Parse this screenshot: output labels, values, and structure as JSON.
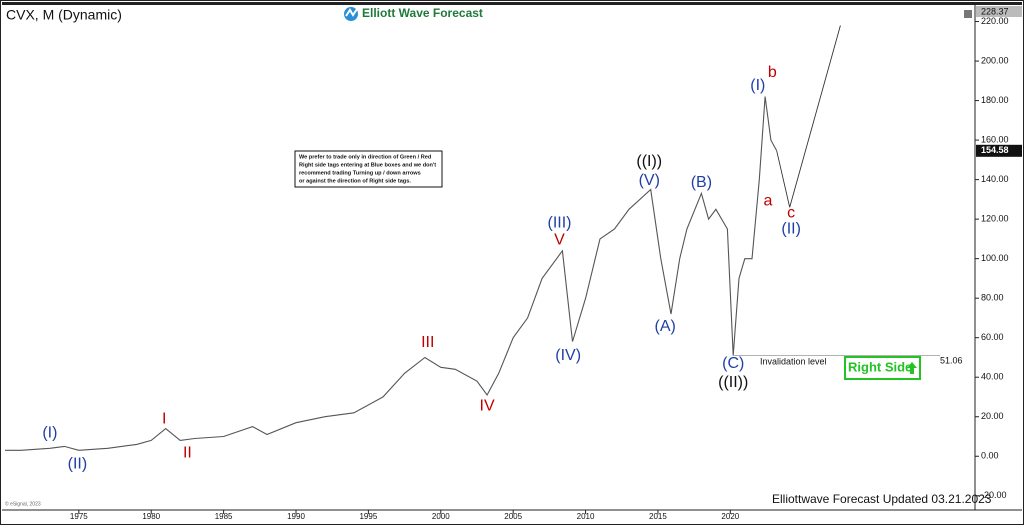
{
  "chart_data": {
    "type": "line",
    "title": "CVX, M (Dynamic)",
    "brand": "Elliott Wave Forecast",
    "x": [
      1969.9,
      1971,
      1973,
      1974,
      1975,
      1977,
      1979,
      1980,
      1981,
      1982,
      1983,
      1985,
      1987,
      1988,
      1990,
      1992,
      1994,
      1996,
      1997.5,
      1998.9,
      2000,
      2001,
      2002.5,
      2003.2,
      2004,
      2005,
      2006,
      2007,
      2008.4,
      2009.1,
      2010,
      2011,
      2012,
      2013,
      2014.5,
      2015.2,
      2015.9,
      2016.5,
      2017,
      2018,
      2018.5,
      2019,
      2019.8,
      2020.2,
      2020.6,
      2021,
      2021.5,
      2022,
      2022.4,
      2022.8,
      2023.2
    ],
    "series": [
      {
        "color": "#555555",
        "values": [
          3,
          3,
          4,
          5,
          3,
          4,
          6,
          8,
          14,
          8,
          9,
          10,
          15,
          11,
          17,
          20,
          22,
          30,
          42,
          50,
          45,
          44,
          38,
          31,
          42,
          60,
          70,
          90,
          104,
          58,
          80,
          110,
          115,
          125,
          135,
          100,
          72,
          100,
          115,
          133,
          120,
          125,
          115,
          51,
          90,
          100,
          100,
          140,
          182,
          160,
          154.58
        ]
      },
      {
        "color": "#333333",
        "x": [
          2023.2,
          2024.1,
          2027.6
        ],
        "values": [
          154.58,
          126,
          218
        ]
      }
    ],
    "xlim": [
      1969.9,
      2036.9
    ],
    "xticks": [
      1975,
      1980,
      1985,
      1990,
      1995,
      2000,
      2005,
      2010,
      2015,
      2020
    ],
    "ylim": [
      -27.2,
      228.37
    ],
    "yticks": [
      {
        "value": 220,
        "label": "220.00"
      },
      {
        "value": 200,
        "label": "200.00"
      },
      {
        "value": 180,
        "label": "180.00"
      },
      {
        "value": 160,
        "label": "160.00"
      },
      {
        "value": 140,
        "label": "140.00"
      },
      {
        "value": 120,
        "label": "120.00"
      },
      {
        "value": 100,
        "label": "100.00"
      },
      {
        "value": 80,
        "label": "80.00"
      },
      {
        "value": 60,
        "label": "60.00"
      },
      {
        "value": 40,
        "label": "40.00"
      },
      {
        "value": 20,
        "label": "20.00"
      },
      {
        "value": 0,
        "label": "0.00"
      },
      {
        "value": -20,
        "label": "-20.00"
      }
    ],
    "last_value": 154.58,
    "invalidation": {
      "label": "Invalidation level",
      "value": 51.06
    },
    "right_side": "Right Side",
    "note": [
      "We prefer to trade only in direction of Green / Red",
      "Right side tags entering at Blue boxes and we don't",
      "recommend trading Turning up / down arrows",
      "or against the direction of Right side tags."
    ],
    "footer": "Elliottwave Forecast Updated 03.21.2023",
    "copyright": "© eSignal, 2023",
    "annotations": [
      {
        "text": "(I)",
        "x": 1973.0,
        "y": 11.6,
        "color": "#1f3fa8"
      },
      {
        "text": "(II)",
        "x": 1974.9,
        "y": -4,
        "color": "#1f3fa8"
      },
      {
        "text": "I",
        "x": 1980.9,
        "y": 18.6,
        "color": "#c00000"
      },
      {
        "text": "II",
        "x": 1982.5,
        "y": 1.5,
        "color": "#c00000"
      },
      {
        "text": "III",
        "x": 1999.1,
        "y": 57.4,
        "color": "#c00000"
      },
      {
        "text": "IV",
        "x": 2003.2,
        "y": 25.2,
        "color": "#c00000"
      },
      {
        "text": "(III)",
        "x": 2008.2,
        "y": 117.9,
        "color": "#1f3fa8"
      },
      {
        "text": "V",
        "x": 2008.2,
        "y": 109.3,
        "color": "#c00000"
      },
      {
        "text": "(IV)",
        "x": 2008.8,
        "y": 50.9,
        "color": "#1f3fa8"
      },
      {
        "text": "((I))",
        "x": 2014.4,
        "y": 149.1,
        "color": "#111111"
      },
      {
        "text": "(V)",
        "x": 2014.4,
        "y": 139.5,
        "color": "#1f3fa8"
      },
      {
        "text": "(A)",
        "x": 2015.5,
        "y": 65.5,
        "color": "#1f3fa8"
      },
      {
        "text": "(B)",
        "x": 2018.0,
        "y": 138.5,
        "color": "#1f3fa8"
      },
      {
        "text": "(C)",
        "x": 2020.2,
        "y": 46.9,
        "color": "#1f3fa8"
      },
      {
        "text": "((II))",
        "x": 2020.2,
        "y": 37.3,
        "color": "#111111"
      },
      {
        "text": "(I)",
        "x": 2021.9,
        "y": 187.4,
        "color": "#1f3fa8"
      },
      {
        "text": "b",
        "x": 2022.9,
        "y": 194,
        "color": "#c00000"
      },
      {
        "text": "a",
        "x": 2022.6,
        "y": 129,
        "color": "#c00000"
      },
      {
        "text": "c",
        "x": 2024.2,
        "y": 123,
        "color": "#c00000"
      },
      {
        "text": "(II)",
        "x": 2024.2,
        "y": 114.9,
        "color": "#1f3fa8"
      }
    ]
  }
}
